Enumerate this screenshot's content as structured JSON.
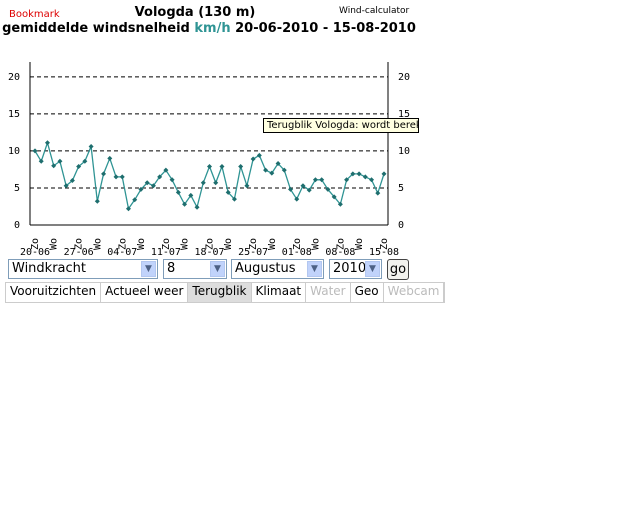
{
  "header": {
    "bookmark": "Bookmark",
    "title": "Vologda (130 m)",
    "link": "Wind-calculator",
    "subtitle": "gemiddelde windsnelheid",
    "unit": "km/h",
    "period": "20-06-2010 - 15-08-2010"
  },
  "chart_data": {
    "type": "line",
    "categories": [
      "20-06",
      null,
      null,
      null,
      null,
      null,
      null,
      "27-06",
      null,
      null,
      null,
      null,
      null,
      null,
      "04-07",
      null,
      null,
      null,
      null,
      null,
      null,
      "11-07",
      null,
      null,
      null,
      null,
      null,
      null,
      "18-07",
      null,
      null,
      null,
      null,
      null,
      null,
      "25-07",
      null,
      null,
      null,
      null,
      null,
      null,
      "01-08",
      null,
      null,
      null,
      null,
      null,
      null,
      "08-08",
      null,
      null,
      null,
      null,
      null,
      null,
      "15-08"
    ],
    "weekdays": [
      "Zo",
      null,
      null,
      "Wo",
      null,
      null,
      null,
      "Zo",
      null,
      null,
      "Wo",
      null,
      null,
      null,
      "Zo",
      null,
      null,
      "Wo",
      null,
      null,
      null,
      "Zo",
      null,
      null,
      "Wo",
      null,
      null,
      null,
      "Zo",
      null,
      null,
      "Wo",
      null,
      null,
      null,
      "Zo",
      null,
      null,
      "Wo",
      null,
      null,
      null,
      "Zo",
      null,
      null,
      "Wo",
      null,
      null,
      null,
      "Zo",
      null,
      null,
      "Wo",
      null,
      null,
      null,
      "Zo"
    ],
    "values": [
      10,
      8.6,
      11.1,
      8,
      8.6,
      5.3,
      6,
      7.9,
      8.6,
      10.6,
      3.2,
      6.9,
      9,
      6.5,
      6.5,
      2.2,
      3.4,
      4.8,
      5.7,
      5.3,
      6.5,
      7.4,
      6.1,
      4.4,
      2.8,
      4,
      2.4,
      5.7,
      7.9,
      5.7,
      7.9,
      4.4,
      3.5,
      7.9,
      5.3,
      8.9,
      9.4,
      7.4,
      7,
      8.3,
      7.4,
      4.8,
      3.5,
      5.3,
      4.7,
      6.1,
      6.1,
      4.8,
      3.8,
      2.8,
      6.1,
      6.9,
      6.9,
      6.5,
      6.1,
      4.3,
      6.9
    ],
    "color": "#2f9494",
    "marker_color": "#1e6e6e",
    "ylim": [
      0,
      22
    ],
    "yticks": [
      0,
      5,
      10,
      15,
      20
    ],
    "grid": true
  },
  "tooltip": "Terugblik Vologda: wordt bereke",
  "controls": {
    "selects": [
      "Windkracht",
      "8",
      "Augustus",
      "2010"
    ],
    "button": "go"
  },
  "tabs": [
    "Vooruitzichten",
    "Actueel weer",
    "Terugblik",
    "Klimaat",
    "Water",
    "Geo",
    "Webcam"
  ],
  "active_tab": 2,
  "disabled_tabs": [
    4,
    6
  ]
}
